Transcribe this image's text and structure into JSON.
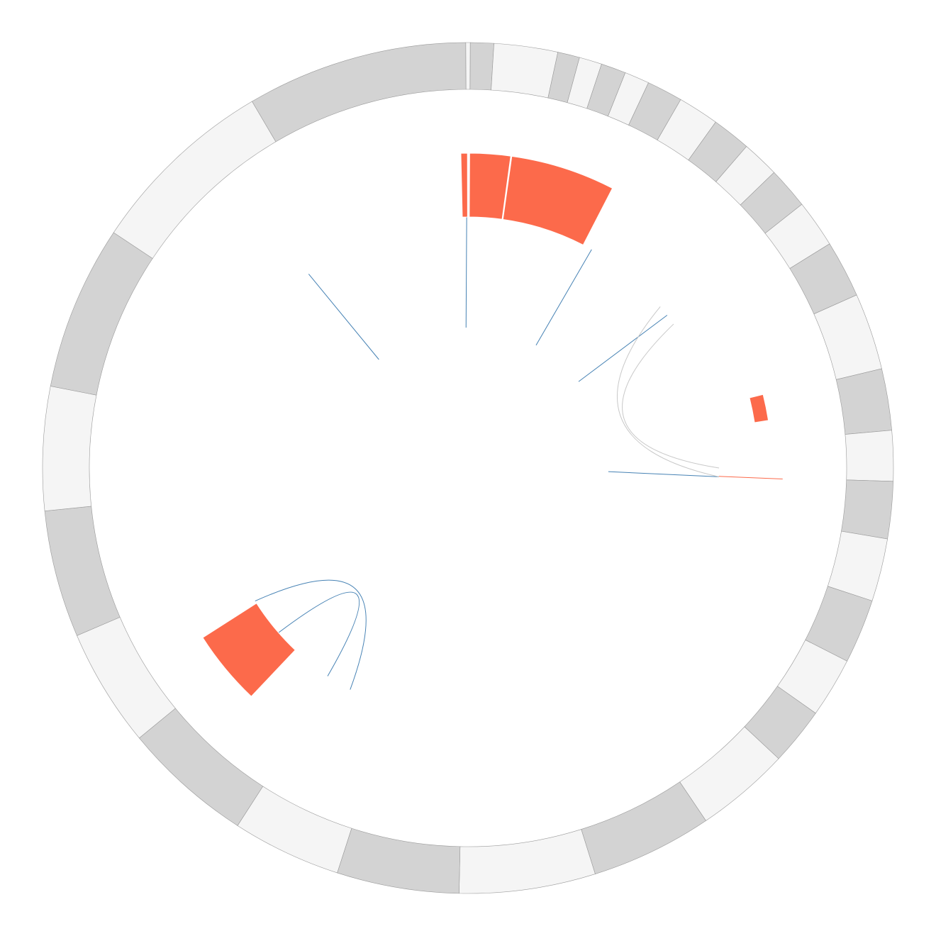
{
  "chart_data": {
    "type": "circos",
    "title": "",
    "colors": {
      "segment_light": "#f5f5f5",
      "segment_dark": "#d3d3d3",
      "segment_stroke": "#999999",
      "highlight": "#fc6a4b",
      "link_blue": "#4682b4",
      "link_grey": "#c8c8c8",
      "link_red": "#fc6a4b"
    },
    "segments": [
      {
        "start": 0.3,
        "end": 3.5,
        "shade": "dark"
      },
      {
        "start": 3.5,
        "end": 12.2,
        "shade": "light"
      },
      {
        "start": 12.2,
        "end": 15.2,
        "shade": "dark"
      },
      {
        "start": 15.2,
        "end": 18.3,
        "shade": "light"
      },
      {
        "start": 18.3,
        "end": 21.7,
        "shade": "dark"
      },
      {
        "start": 21.7,
        "end": 25.1,
        "shade": "light"
      },
      {
        "start": 25.1,
        "end": 30.0,
        "shade": "dark"
      },
      {
        "start": 30.0,
        "end": 35.6,
        "shade": "light"
      },
      {
        "start": 35.6,
        "end": 40.9,
        "shade": "dark"
      },
      {
        "start": 40.9,
        "end": 46.0,
        "shade": "light"
      },
      {
        "start": 46.0,
        "end": 51.7,
        "shade": "dark"
      },
      {
        "start": 51.7,
        "end": 58.2,
        "shade": "light"
      },
      {
        "start": 58.2,
        "end": 66.0,
        "shade": "dark"
      },
      {
        "start": 66.0,
        "end": 76.5,
        "shade": "light"
      },
      {
        "start": 76.5,
        "end": 84.9,
        "shade": "dark"
      },
      {
        "start": 84.9,
        "end": 91.8,
        "shade": "light"
      },
      {
        "start": 91.8,
        "end": 99.6,
        "shade": "dark"
      },
      {
        "start": 99.6,
        "end": 108.2,
        "shade": "light"
      },
      {
        "start": 108.2,
        "end": 117.0,
        "shade": "dark"
      },
      {
        "start": 117.0,
        "end": 125.2,
        "shade": "light"
      },
      {
        "start": 125.2,
        "end": 133.1,
        "shade": "dark"
      },
      {
        "start": 133.1,
        "end": 146.0,
        "shade": "light"
      },
      {
        "start": 146.0,
        "end": 162.6,
        "shade": "dark"
      },
      {
        "start": 162.6,
        "end": 181.2,
        "shade": "light"
      },
      {
        "start": 181.2,
        "end": 197.9,
        "shade": "dark"
      },
      {
        "start": 197.9,
        "end": 212.8,
        "shade": "light"
      },
      {
        "start": 212.8,
        "end": 230.6,
        "shade": "dark"
      },
      {
        "start": 230.6,
        "end": 246.8,
        "shade": "light"
      },
      {
        "start": 246.8,
        "end": 264.2,
        "shade": "dark"
      },
      {
        "start": 264.2,
        "end": 281.1,
        "shade": "light"
      },
      {
        "start": 281.1,
        "end": 303.6,
        "shade": "dark"
      },
      {
        "start": 303.6,
        "end": 329.5,
        "shade": "light"
      },
      {
        "start": 329.5,
        "end": 359.7,
        "shade": "dark"
      },
      {
        "start": 359.7,
        "end": 360.3,
        "shade": "light"
      }
    ],
    "histogram": [
      {
        "start": -1.3,
        "end": -0.1,
        "value": 1.0
      },
      {
        "start": 0.3,
        "end": 7.8,
        "value": 1.0
      },
      {
        "start": 8.0,
        "end": 27.3,
        "value": 1.0
      },
      {
        "start": 76.0,
        "end": 81.0,
        "value": 0.5
      },
      {
        "start": 223.5,
        "end": 237.4,
        "value": 1.0
      }
    ],
    "links": [
      {
        "type": "line",
        "color": "blue",
        "angles": [
          -39.4,
          -39.4
        ]
      },
      {
        "type": "line",
        "color": "blue",
        "angles": [
          -0.8,
          -0.3
        ]
      },
      {
        "type": "line",
        "color": "blue",
        "angles": [
          29.0,
          29.5
        ]
      },
      {
        "type": "line",
        "color": "blue",
        "angles": [
          52.0,
          52.5
        ]
      },
      {
        "type": "line",
        "color": "blue",
        "angles": [
          91.5,
          92.0
        ]
      },
      {
        "type": "line",
        "color": "red",
        "angles": [
          91.9,
          92.0
        ]
      },
      {
        "type": "ribbon",
        "color": "blue",
        "from": [
          208.0,
          214.0
        ],
        "to": [
          229.0,
          238.0
        ]
      },
      {
        "type": "ribbon",
        "color": "grey",
        "from": [
          50.0,
          55.0
        ],
        "to": [
          90.0,
          92.0
        ]
      }
    ]
  }
}
